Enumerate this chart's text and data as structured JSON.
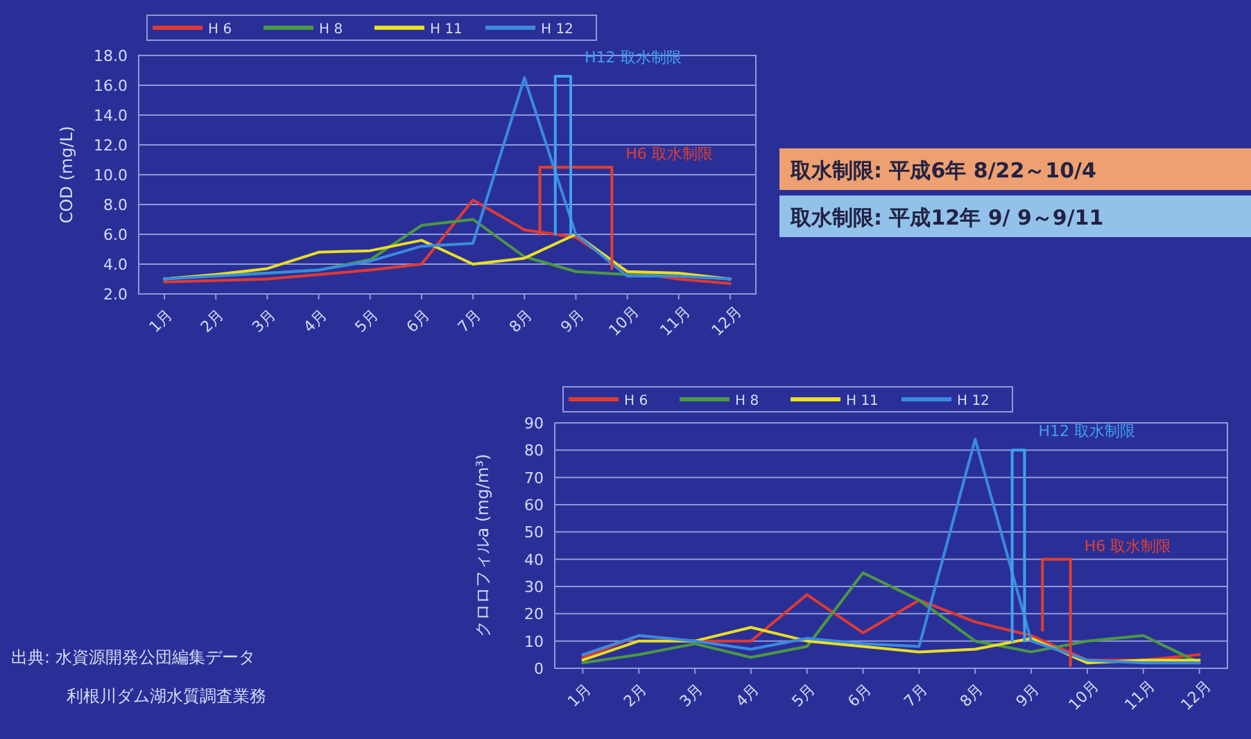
{
  "chart_data": [
    {
      "type": "line",
      "ylabel": "COD (mg/L)",
      "x": [
        1,
        2,
        3,
        4,
        5,
        6,
        7,
        8,
        9,
        10,
        11,
        12
      ],
      "xlim": [
        0.5,
        12.5
      ],
      "xticks": [
        {
          "value": 1,
          "label": "1月"
        },
        {
          "value": 2,
          "label": "2月"
        },
        {
          "value": 3,
          "label": "3月"
        },
        {
          "value": 4,
          "label": "4月"
        },
        {
          "value": 5,
          "label": "5月"
        },
        {
          "value": 6,
          "label": "6月"
        },
        {
          "value": 7,
          "label": "7月"
        },
        {
          "value": 8,
          "label": "8月"
        },
        {
          "value": 9,
          "label": "9月"
        },
        {
          "value": 10,
          "label": "10月"
        },
        {
          "value": 11,
          "label": "11月"
        },
        {
          "value": 12,
          "label": "12月"
        }
      ],
      "ylim": [
        2,
        18
      ],
      "yticks": [
        {
          "value": 2,
          "label": "2.0"
        },
        {
          "value": 4,
          "label": "4.0"
        },
        {
          "value": 6,
          "label": "6.0"
        },
        {
          "value": 8,
          "label": "8.0"
        },
        {
          "value": 10,
          "label": "10.0"
        },
        {
          "value": 12,
          "label": "12.0"
        },
        {
          "value": 14,
          "label": "14.0"
        },
        {
          "value": 16,
          "label": "16.0"
        },
        {
          "value": 18,
          "label": "18.0"
        }
      ],
      "grid": "y",
      "legend": "top",
      "series": [
        {
          "name": "H 6",
          "color": "#e03a30",
          "values": [
            2.8,
            2.9,
            3.0,
            3.3,
            3.6,
            4.0,
            8.3,
            6.3,
            5.8,
            3.5,
            3.0,
            2.7
          ]
        },
        {
          "name": "H 8",
          "color": "#4a9a40",
          "values": [
            3.0,
            3.3,
            3.4,
            3.6,
            4.3,
            6.6,
            7.0,
            4.5,
            3.5,
            3.3,
            3.2,
            3.0
          ]
        },
        {
          "name": "H 11",
          "color": "#e8e020",
          "values": [
            3.0,
            3.3,
            3.7,
            4.8,
            4.9,
            5.6,
            4.0,
            4.4,
            6.0,
            3.5,
            3.4,
            3.0
          ]
        },
        {
          "name": "H 12",
          "color": "#3a8ae0",
          "values": [
            3.0,
            3.2,
            3.4,
            3.6,
            4.2,
            5.2,
            5.4,
            16.5,
            6.0,
            3.2,
            3.2,
            3.0
          ]
        },
        {
          "color": "#e04030",
          "x": [
            8.3,
            8.3,
            9.7,
            9.7
          ],
          "values": [
            6.0,
            10.5,
            10.5,
            3.7
          ]
        },
        {
          "color": "#40a0f0",
          "x": [
            8.6,
            8.6,
            8.9,
            8.9
          ],
          "values": [
            6.0,
            16.6,
            16.6,
            6.0
          ]
        }
      ],
      "annotations": [
        "H12 取水制限",
        "H6 取水制限",
        "取水制限: 平成6年 8/22～10/4",
        "取水制限: 平成12年 9/ 9～9/11"
      ]
    },
    {
      "type": "line",
      "ylabel": "クロロフィルa (mg/m³)",
      "x": [
        1,
        2,
        3,
        4,
        5,
        6,
        7,
        8,
        9,
        10,
        11,
        12
      ],
      "xlim": [
        0.5,
        12.5
      ],
      "xticks": [
        {
          "value": 1,
          "label": "1月"
        },
        {
          "value": 2,
          "label": "2月"
        },
        {
          "value": 3,
          "label": "3月"
        },
        {
          "value": 4,
          "label": "4月"
        },
        {
          "value": 5,
          "label": "5月"
        },
        {
          "value": 6,
          "label": "6月"
        },
        {
          "value": 7,
          "label": "7月"
        },
        {
          "value": 8,
          "label": "8月"
        },
        {
          "value": 9,
          "label": "9月"
        },
        {
          "value": 10,
          "label": "10月"
        },
        {
          "value": 11,
          "label": "11月"
        },
        {
          "value": 12,
          "label": "12月"
        }
      ],
      "ylim": [
        0,
        90
      ],
      "yticks": [
        0,
        10,
        20,
        30,
        40,
        50,
        60,
        70,
        80,
        90
      ],
      "grid": "y",
      "legend": "top",
      "series": [
        {
          "name": "H 6",
          "color": "#e03a30",
          "values": [
            4,
            12,
            10,
            10,
            27,
            13,
            25,
            17,
            12,
            3,
            3,
            5
          ]
        },
        {
          "name": "H 8",
          "color": "#4a9a40",
          "values": [
            2,
            5,
            9,
            4,
            8,
            35,
            25,
            10,
            6,
            10,
            12,
            2
          ]
        },
        {
          "name": "H 11",
          "color": "#e8e020",
          "values": [
            3,
            10,
            10,
            15,
            10,
            8,
            6,
            7,
            11,
            2,
            3,
            3
          ]
        },
        {
          "name": "H 12",
          "color": "#3a8ae0",
          "values": [
            5,
            12,
            10,
            7,
            11,
            9,
            8,
            84,
            10,
            3,
            2,
            2
          ]
        },
        {
          "color": "#e04030",
          "x": [
            9.2,
            9.2,
            9.7,
            9.7
          ],
          "values": [
            14,
            40,
            40,
            1
          ]
        },
        {
          "color": "#40a0f0",
          "x": [
            8.66,
            8.66,
            8.88,
            8.88
          ],
          "values": [
            10,
            80,
            80,
            10
          ]
        }
      ],
      "annotations": [
        "H12 取水制限",
        "H6 取水制限",
        "出典: 水資源開発公団編集データ",
        "利根川ダム湖水質調査業務"
      ]
    }
  ]
}
